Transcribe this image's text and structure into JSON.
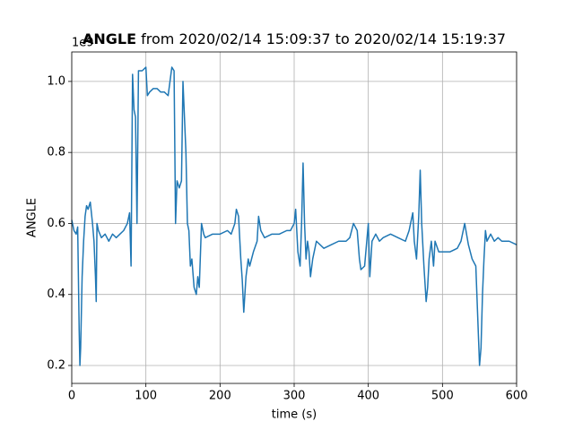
{
  "chart_data": {
    "type": "line",
    "title_bold": "ANGLE",
    "title_rest": " from 2020/02/14 15:09:37 to 2020/02/14 15:19:37",
    "xlabel": "time (s)",
    "ylabel": "ANGLE",
    "y_offset_label": "1e9",
    "xlim": [
      0,
      600
    ],
    "ylim": [
      0.1495,
      1.083
    ],
    "xticks": [
      0,
      100,
      200,
      300,
      400,
      500,
      600
    ],
    "yticks": [
      0.2,
      0.4,
      0.6,
      0.8,
      {
        "value": 1,
        "label": "1.0"
      }
    ],
    "grid": true,
    "series": [
      {
        "name": "ANGLE",
        "color": "#1f77b4",
        "x": [
          0,
          3,
          6,
          8,
          10,
          11,
          12,
          14,
          16,
          18,
          20,
          22,
          25,
          28,
          30,
          32,
          33,
          34,
          36,
          40,
          45,
          50,
          55,
          60,
          65,
          70,
          75,
          78,
          80,
          82,
          84,
          86,
          88,
          90,
          95,
          100,
          102,
          105,
          110,
          115,
          120,
          125,
          130,
          135,
          138,
          140,
          142,
          145,
          148,
          150,
          152,
          154,
          156,
          158,
          160,
          162,
          165,
          168,
          170,
          172,
          175,
          178,
          180,
          190,
          200,
          210,
          215,
          220,
          222,
          225,
          228,
          230,
          232,
          235,
          238,
          240,
          245,
          250,
          252,
          255,
          260,
          270,
          280,
          290,
          295,
          300,
          302,
          305,
          308,
          310,
          312,
          314,
          316,
          318,
          320,
          322,
          325,
          330,
          340,
          350,
          360,
          370,
          375,
          380,
          385,
          388,
          390,
          395,
          400,
          402,
          405,
          410,
          415,
          420,
          430,
          440,
          450,
          455,
          460,
          462,
          465,
          468,
          470,
          472,
          475,
          478,
          480,
          482,
          485,
          488,
          490,
          495,
          500,
          510,
          520,
          525,
          530,
          535,
          540,
          545,
          550,
          552,
          554,
          556,
          558,
          560,
          565,
          570,
          575,
          580,
          590,
          600
        ],
        "values": [
          0.61,
          0.58,
          0.57,
          0.59,
          0.3,
          0.2,
          0.25,
          0.45,
          0.55,
          0.62,
          0.65,
          0.64,
          0.66,
          0.6,
          0.55,
          0.45,
          0.38,
          0.6,
          0.58,
          0.56,
          0.57,
          0.55,
          0.57,
          0.56,
          0.57,
          0.58,
          0.6,
          0.63,
          0.48,
          1.02,
          0.92,
          0.9,
          0.6,
          1.03,
          1.03,
          1.04,
          0.96,
          0.97,
          0.98,
          0.98,
          0.97,
          0.97,
          0.96,
          1.04,
          1.03,
          0.6,
          0.72,
          0.7,
          0.72,
          1.0,
          0.9,
          0.8,
          0.6,
          0.58,
          0.48,
          0.5,
          0.42,
          0.4,
          0.45,
          0.42,
          0.6,
          0.57,
          0.56,
          0.57,
          0.57,
          0.58,
          0.57,
          0.6,
          0.64,
          0.62,
          0.5,
          0.44,
          0.35,
          0.45,
          0.5,
          0.48,
          0.52,
          0.55,
          0.62,
          0.58,
          0.56,
          0.57,
          0.57,
          0.58,
          0.58,
          0.6,
          0.64,
          0.52,
          0.48,
          0.6,
          0.77,
          0.6,
          0.5,
          0.55,
          0.52,
          0.45,
          0.5,
          0.55,
          0.53,
          0.54,
          0.55,
          0.55,
          0.56,
          0.6,
          0.58,
          0.5,
          0.47,
          0.48,
          0.6,
          0.45,
          0.55,
          0.57,
          0.55,
          0.56,
          0.57,
          0.56,
          0.55,
          0.58,
          0.63,
          0.55,
          0.5,
          0.62,
          0.75,
          0.6,
          0.48,
          0.38,
          0.42,
          0.5,
          0.55,
          0.48,
          0.55,
          0.52,
          0.52,
          0.52,
          0.53,
          0.55,
          0.6,
          0.54,
          0.5,
          0.48,
          0.2,
          0.25,
          0.4,
          0.5,
          0.58,
          0.55,
          0.57,
          0.55,
          0.56,
          0.55,
          0.55,
          0.54
        ]
      }
    ]
  }
}
